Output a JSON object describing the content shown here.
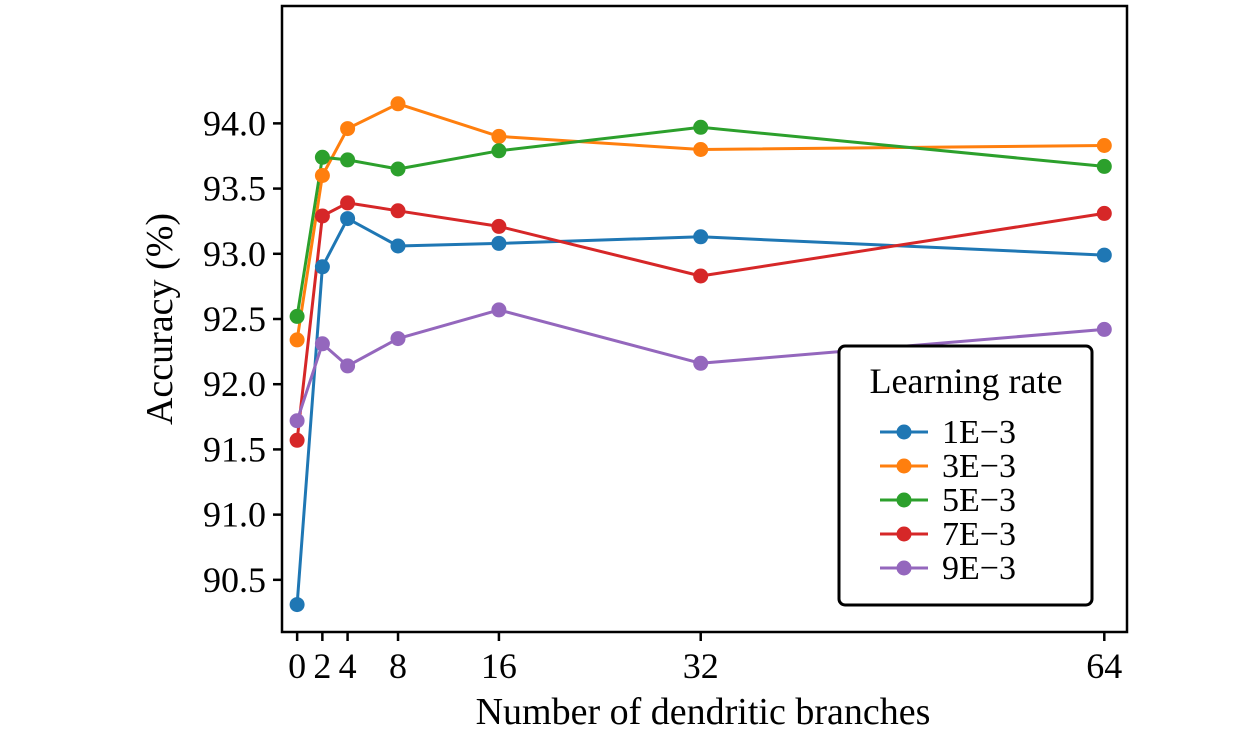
{
  "chart_data": {
    "type": "line",
    "title": "",
    "xlabel": "Number of dendritic branches",
    "ylabel": "Accuracy (%)",
    "x": [
      0,
      2,
      4,
      8,
      16,
      32,
      64
    ],
    "x_ticks": [
      0,
      2,
      4,
      8,
      16,
      32,
      64
    ],
    "x_tick_labels": [
      "0",
      "2",
      "4",
      "8",
      "16",
      "32",
      "64"
    ],
    "xlim": [
      -1.2,
      65.8
    ],
    "y_ticks": [
      90.5,
      91.0,
      91.5,
      92.0,
      92.5,
      93.0,
      93.5,
      94.0
    ],
    "y_tick_labels": [
      "90.5",
      "91.0",
      "91.5",
      "92.0",
      "92.5",
      "93.0",
      "93.5",
      "94.0"
    ],
    "ylim": [
      90.1,
      94.9
    ],
    "grid": false,
    "legend": {
      "title": "Learning rate",
      "placement": "right"
    },
    "series": [
      {
        "name": "1E−3",
        "color": "#1f77b4",
        "values": [
          90.31,
          92.9,
          93.27,
          93.06,
          93.08,
          93.13,
          92.99
        ]
      },
      {
        "name": "3E−3",
        "color": "#ff7f0e",
        "values": [
          92.34,
          93.6,
          93.96,
          94.15,
          93.9,
          93.8,
          93.83
        ]
      },
      {
        "name": "5E−3",
        "color": "#2ca02c",
        "values": [
          92.52,
          93.74,
          93.72,
          93.65,
          93.79,
          93.97,
          93.67
        ]
      },
      {
        "name": "7E−3",
        "color": "#d62728",
        "values": [
          91.57,
          93.29,
          93.39,
          93.33,
          93.21,
          92.83,
          93.31
        ]
      },
      {
        "name": "9E−3",
        "color": "#9467bd",
        "values": [
          91.72,
          92.31,
          92.14,
          92.35,
          92.57,
          92.16,
          92.42
        ]
      }
    ]
  }
}
